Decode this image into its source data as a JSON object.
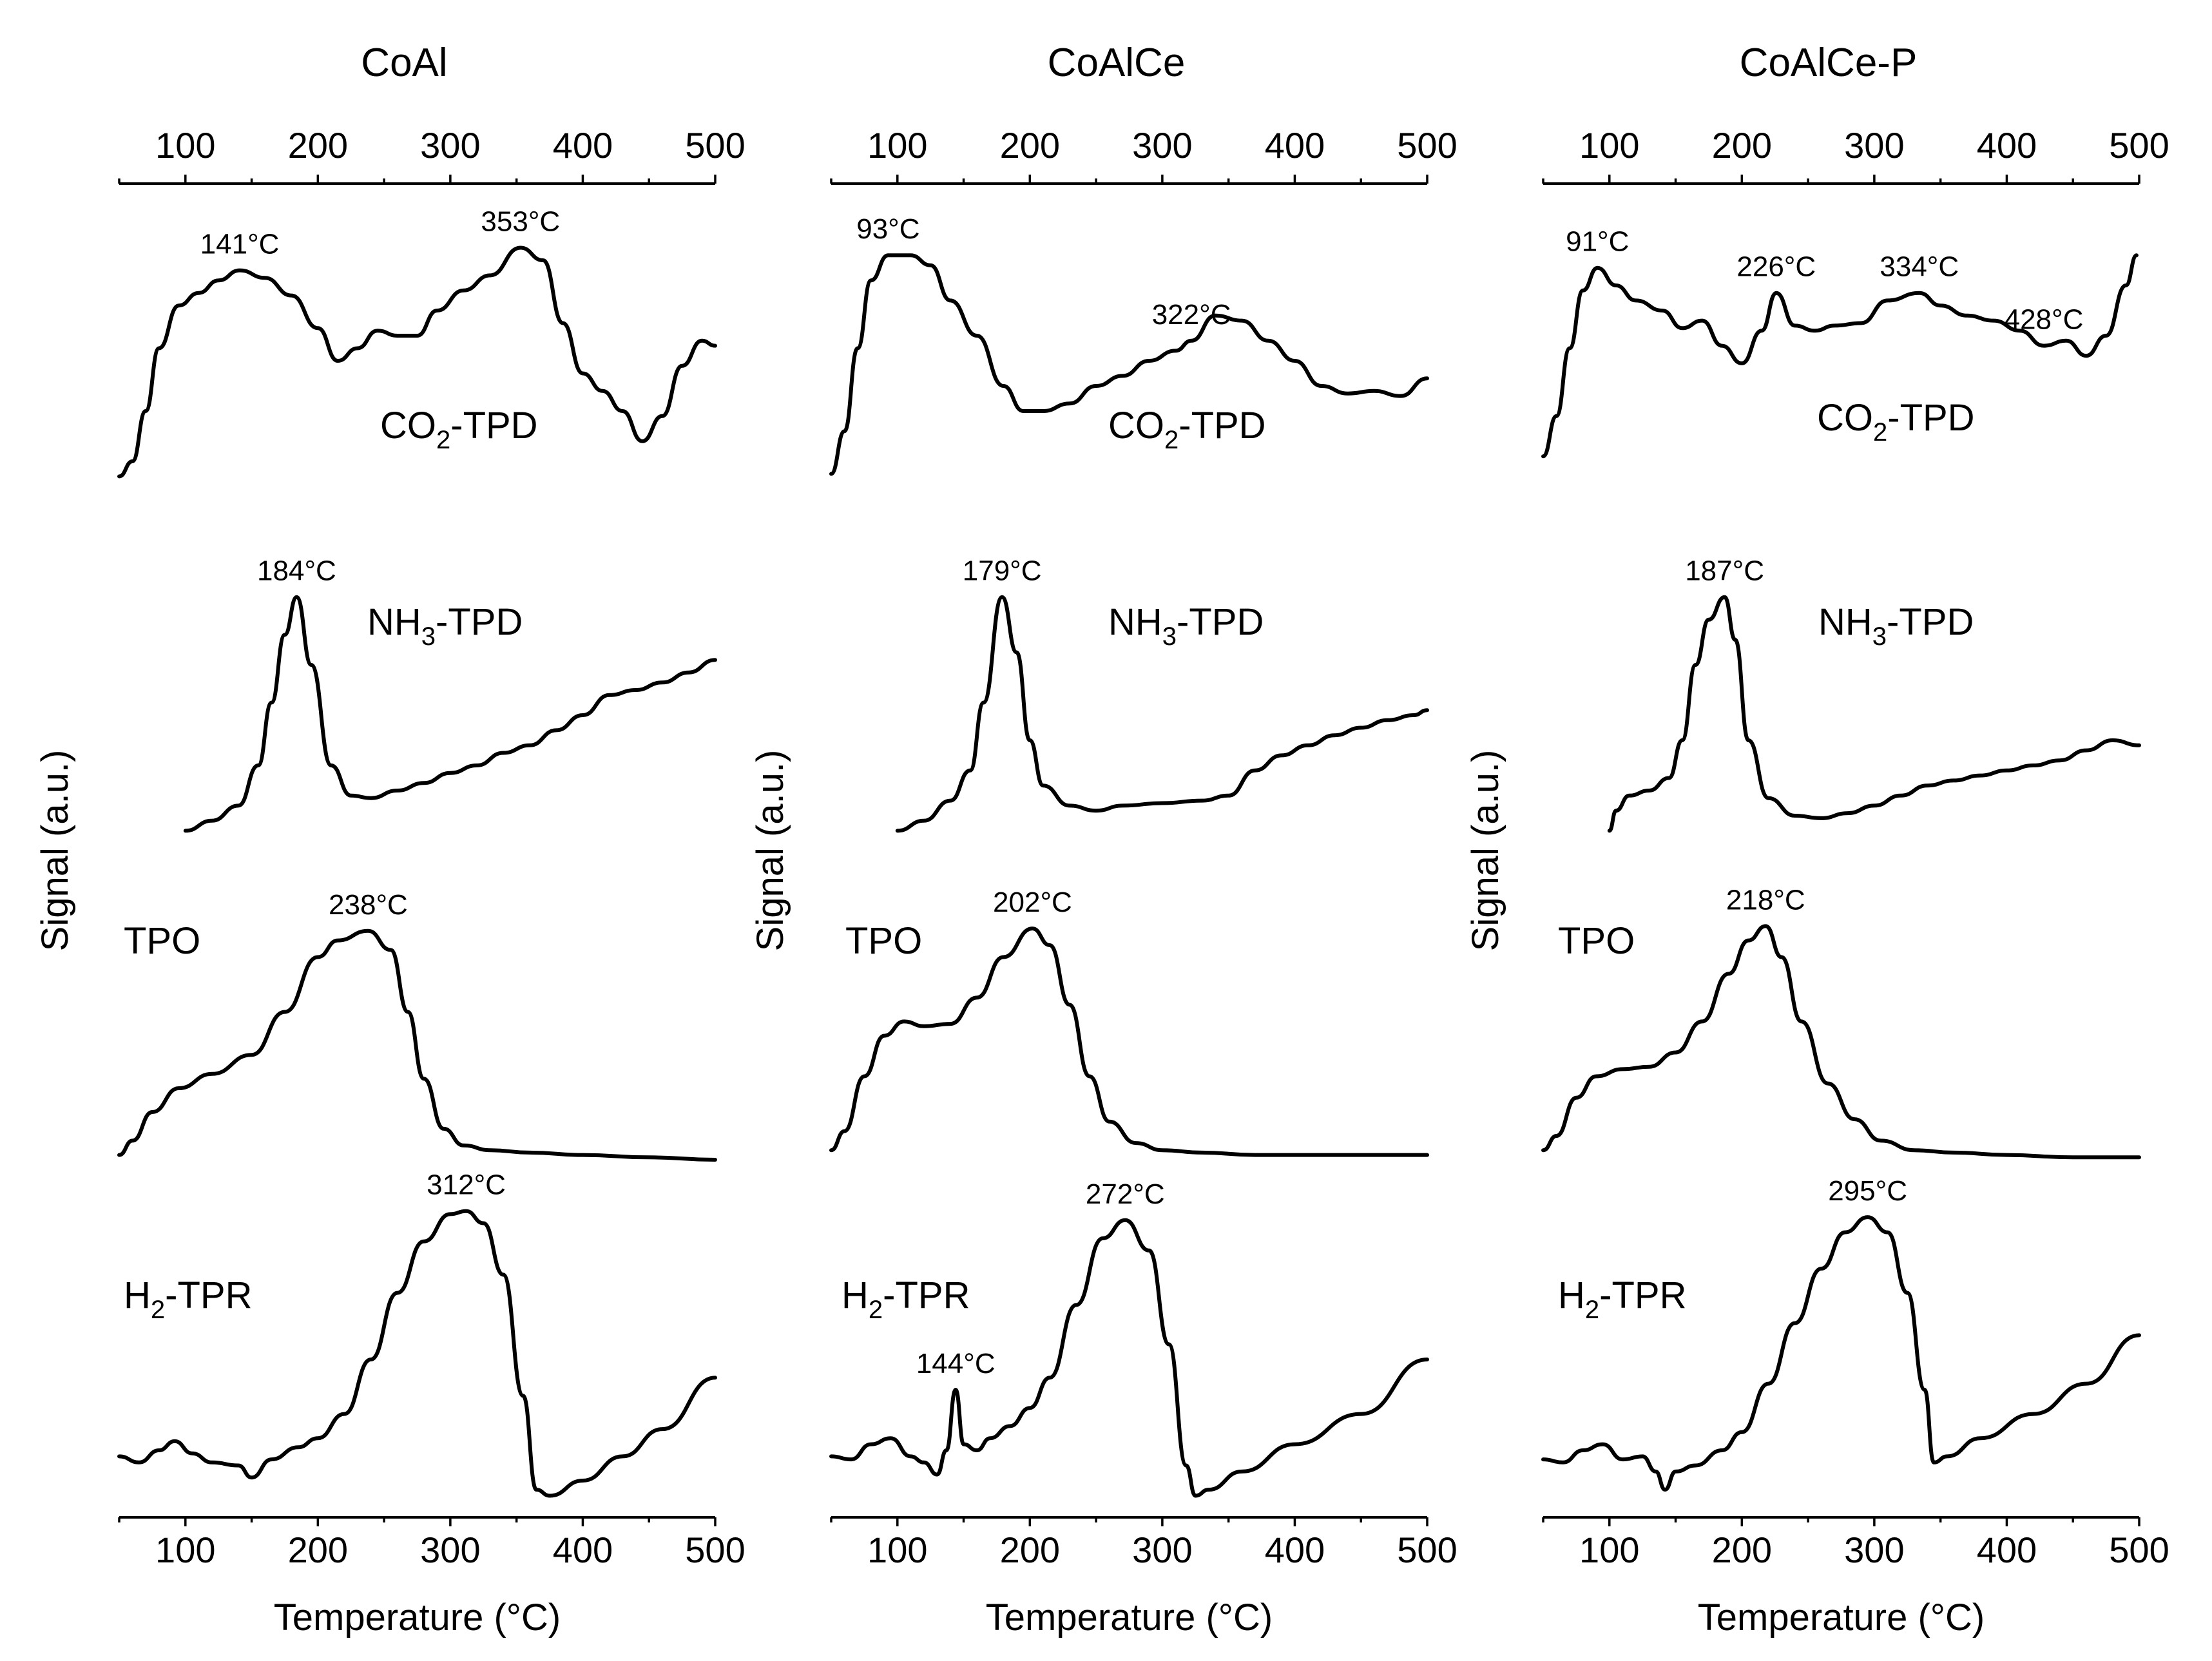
{
  "chart_data": [
    {
      "type": "line",
      "title": "CoAl",
      "xlabel": "Temperature (°C)",
      "ylabel": "Signal (a.u.)",
      "xlim": [
        50,
        500
      ],
      "xticks": [
        100,
        200,
        300,
        400,
        500
      ],
      "series": [
        {
          "name": "CO2-TPD",
          "label_main": "CO",
          "label_sub": "2",
          "label_tail": "-TPD",
          "x": [
            50,
            60,
            70,
            80,
            95,
            110,
            125,
            141,
            160,
            180,
            200,
            215,
            230,
            245,
            260,
            275,
            290,
            310,
            330,
            353,
            370,
            385,
            400,
            415,
            430,
            445,
            460,
            475,
            490,
            500
          ],
          "y": [
            0.04,
            0.1,
            0.3,
            0.55,
            0.72,
            0.77,
            0.82,
            0.86,
            0.83,
            0.76,
            0.63,
            0.5,
            0.55,
            0.62,
            0.6,
            0.6,
            0.7,
            0.78,
            0.84,
            0.95,
            0.9,
            0.65,
            0.45,
            0.38,
            0.3,
            0.18,
            0.28,
            0.48,
            0.58,
            0.56
          ],
          "peaks": [
            {
              "x": 141,
              "y": 0.86,
              "label": "141°C"
            },
            {
              "x": 353,
              "y": 0.95,
              "label": "353°C"
            }
          ]
        },
        {
          "name": "NH3-TPD",
          "label_main": "NH",
          "label_sub": "3",
          "label_tail": "-TPD",
          "x": [
            100,
            120,
            140,
            155,
            165,
            175,
            184,
            195,
            210,
            225,
            240,
            260,
            280,
            300,
            320,
            340,
            360,
            380,
            400,
            420,
            440,
            460,
            480,
            500
          ],
          "y": [
            0.04,
            0.08,
            0.14,
            0.3,
            0.55,
            0.82,
            0.97,
            0.7,
            0.3,
            0.18,
            0.17,
            0.2,
            0.23,
            0.27,
            0.3,
            0.35,
            0.38,
            0.44,
            0.5,
            0.58,
            0.6,
            0.63,
            0.67,
            0.72
          ],
          "peaks": [
            {
              "x": 184,
              "y": 0.97,
              "label": "184°C"
            }
          ]
        },
        {
          "name": "TPO",
          "label_main": "TPO",
          "label_sub": "",
          "label_tail": "",
          "x": [
            50,
            60,
            75,
            95,
            120,
            150,
            175,
            200,
            215,
            238,
            255,
            268,
            280,
            295,
            310,
            330,
            360,
            400,
            450,
            500
          ],
          "y": [
            0.02,
            0.08,
            0.2,
            0.3,
            0.36,
            0.44,
            0.62,
            0.85,
            0.92,
            0.96,
            0.88,
            0.62,
            0.34,
            0.13,
            0.06,
            0.04,
            0.03,
            0.02,
            0.01,
            0.0
          ],
          "peaks": [
            {
              "x": 238,
              "y": 0.96,
              "label": "238°C"
            }
          ]
        },
        {
          "name": "H2-TPR",
          "label_main": "H",
          "label_sub": "2",
          "label_tail": "-TPR",
          "x": [
            50,
            65,
            80,
            92,
            105,
            120,
            140,
            150,
            165,
            185,
            200,
            220,
            240,
            260,
            280,
            300,
            312,
            325,
            340,
            355,
            365,
            375,
            400,
            430,
            460,
            500
          ],
          "y": [
            0.18,
            0.16,
            0.2,
            0.23,
            0.19,
            0.16,
            0.15,
            0.11,
            0.17,
            0.21,
            0.24,
            0.32,
            0.5,
            0.72,
            0.89,
            0.98,
            0.99,
            0.95,
            0.78,
            0.38,
            0.07,
            0.05,
            0.1,
            0.18,
            0.27,
            0.44
          ],
          "peaks": [
            {
              "x": 312,
              "y": 0.99,
              "label": "312°C"
            }
          ]
        }
      ]
    },
    {
      "type": "line",
      "title": "CoAlCe",
      "xlabel": "Temperature (°C)",
      "ylabel": "Signal (a.u.)",
      "xlim": [
        50,
        500
      ],
      "xticks": [
        100,
        200,
        300,
        400,
        500
      ],
      "series": [
        {
          "name": "CO2-TPD",
          "label_main": "CO",
          "label_sub": "2",
          "label_tail": "-TPD",
          "x": [
            50,
            60,
            70,
            80,
            93,
            110,
            125,
            140,
            160,
            180,
            195,
            210,
            230,
            250,
            270,
            290,
            310,
            322,
            340,
            360,
            380,
            400,
            420,
            440,
            460,
            480,
            500
          ],
          "y": [
            0.05,
            0.22,
            0.55,
            0.82,
            0.92,
            0.92,
            0.88,
            0.74,
            0.6,
            0.4,
            0.3,
            0.3,
            0.33,
            0.4,
            0.44,
            0.5,
            0.54,
            0.58,
            0.68,
            0.66,
            0.58,
            0.5,
            0.4,
            0.37,
            0.38,
            0.36,
            0.43
          ],
          "peaks": [
            {
              "x": 93,
              "y": 0.92,
              "label": "93°C"
            },
            {
              "x": 322,
              "y": 0.58,
              "label": "322°C"
            }
          ]
        },
        {
          "name": "NH3-TPD",
          "label_main": "NH",
          "label_sub": "3",
          "label_tail": "-TPD",
          "x": [
            100,
            120,
            140,
            155,
            165,
            179,
            190,
            200,
            210,
            230,
            250,
            270,
            300,
            330,
            350,
            370,
            390,
            410,
            430,
            450,
            470,
            490,
            500
          ],
          "y": [
            0.04,
            0.08,
            0.16,
            0.28,
            0.55,
            0.97,
            0.75,
            0.4,
            0.22,
            0.14,
            0.12,
            0.14,
            0.15,
            0.16,
            0.18,
            0.28,
            0.34,
            0.38,
            0.42,
            0.45,
            0.48,
            0.5,
            0.52
          ],
          "peaks": [
            {
              "x": 179,
              "y": 0.97,
              "label": "179°C"
            }
          ]
        },
        {
          "name": "TPO",
          "label_main": "TPO",
          "label_sub": "",
          "label_tail": "",
          "x": [
            50,
            60,
            75,
            90,
            105,
            120,
            140,
            160,
            180,
            202,
            215,
            230,
            245,
            260,
            280,
            300,
            330,
            370,
            420,
            460,
            500
          ],
          "y": [
            0.04,
            0.12,
            0.35,
            0.52,
            0.58,
            0.56,
            0.57,
            0.68,
            0.85,
            0.97,
            0.9,
            0.65,
            0.35,
            0.16,
            0.07,
            0.04,
            0.03,
            0.02,
            0.02,
            0.02,
            0.02
          ],
          "peaks": [
            {
              "x": 202,
              "y": 0.97,
              "label": "202°C"
            }
          ]
        },
        {
          "name": "H2-TPR",
          "label_main": "H",
          "label_sub": "2",
          "label_tail": "-TPR",
          "x": [
            50,
            65,
            80,
            95,
            110,
            120,
            130,
            137,
            144,
            150,
            160,
            170,
            185,
            200,
            215,
            235,
            255,
            272,
            290,
            305,
            318,
            325,
            335,
            360,
            400,
            450,
            500
          ],
          "y": [
            0.18,
            0.17,
            0.22,
            0.24,
            0.18,
            0.16,
            0.12,
            0.2,
            0.4,
            0.22,
            0.2,
            0.24,
            0.28,
            0.34,
            0.44,
            0.68,
            0.9,
            0.96,
            0.86,
            0.55,
            0.15,
            0.05,
            0.07,
            0.13,
            0.22,
            0.32,
            0.5
          ],
          "peaks": [
            {
              "x": 144,
              "y": 0.4,
              "label": "144°C"
            },
            {
              "x": 272,
              "y": 0.96,
              "label": "272°C"
            }
          ]
        }
      ]
    },
    {
      "type": "line",
      "title": "CoAlCe-P",
      "xlabel": "Temperature (°C)",
      "ylabel": "Signal (a.u.)",
      "xlim": [
        50,
        500
      ],
      "xticks": [
        100,
        200,
        300,
        400,
        500
      ],
      "series": [
        {
          "name": "CO2-TPD",
          "label_main": "CO",
          "label_sub": "2",
          "label_tail": "-TPD",
          "x": [
            50,
            60,
            70,
            80,
            91,
            105,
            120,
            140,
            155,
            170,
            185,
            200,
            215,
            226,
            240,
            255,
            270,
            290,
            310,
            334,
            350,
            370,
            390,
            410,
            428,
            445,
            460,
            475,
            490,
            498
          ],
          "y": [
            0.12,
            0.28,
            0.55,
            0.78,
            0.87,
            0.8,
            0.74,
            0.7,
            0.63,
            0.66,
            0.56,
            0.49,
            0.62,
            0.77,
            0.64,
            0.62,
            0.64,
            0.65,
            0.74,
            0.77,
            0.72,
            0.68,
            0.66,
            0.62,
            0.56,
            0.58,
            0.52,
            0.6,
            0.8,
            0.92
          ],
          "peaks": [
            {
              "x": 91,
              "y": 0.87,
              "label": "91°C"
            },
            {
              "x": 226,
              "y": 0.77,
              "label": "226°C"
            },
            {
              "x": 334,
              "y": 0.77,
              "label": "334°C"
            },
            {
              "x": 428,
              "y": 0.56,
              "label": "428°C"
            }
          ]
        },
        {
          "name": "NH3-TPD",
          "label_main": "NH",
          "label_sub": "3",
          "label_tail": "-TPD",
          "x": [
            100,
            105,
            115,
            130,
            145,
            155,
            165,
            175,
            187,
            195,
            205,
            220,
            240,
            260,
            280,
            300,
            320,
            340,
            360,
            380,
            400,
            420,
            440,
            460,
            480,
            500
          ],
          "y": [
            0.04,
            0.12,
            0.18,
            0.2,
            0.25,
            0.4,
            0.7,
            0.88,
            0.97,
            0.8,
            0.4,
            0.17,
            0.1,
            0.09,
            0.11,
            0.14,
            0.18,
            0.22,
            0.24,
            0.26,
            0.28,
            0.3,
            0.32,
            0.36,
            0.4,
            0.38
          ],
          "peaks": [
            {
              "x": 187,
              "y": 0.97,
              "label": "187°C"
            }
          ]
        },
        {
          "name": "TPO",
          "label_main": "TPO",
          "label_sub": "",
          "label_tail": "",
          "x": [
            50,
            60,
            75,
            90,
            110,
            130,
            150,
            170,
            190,
            205,
            218,
            230,
            245,
            265,
            285,
            305,
            330,
            360,
            400,
            450,
            500
          ],
          "y": [
            0.04,
            0.1,
            0.26,
            0.35,
            0.38,
            0.39,
            0.45,
            0.58,
            0.78,
            0.92,
            0.98,
            0.85,
            0.58,
            0.32,
            0.17,
            0.08,
            0.04,
            0.03,
            0.02,
            0.01,
            0.01
          ],
          "peaks": [
            {
              "x": 218,
              "y": 0.98,
              "label": "218°C"
            }
          ]
        },
        {
          "name": "H2-TPR",
          "label_main": "H",
          "label_sub": "2",
          "label_tail": "-TPR",
          "x": [
            50,
            65,
            80,
            95,
            110,
            125,
            135,
            142,
            150,
            165,
            185,
            200,
            220,
            240,
            260,
            278,
            295,
            310,
            325,
            338,
            345,
            355,
            380,
            420,
            460,
            500
          ],
          "y": [
            0.17,
            0.16,
            0.2,
            0.22,
            0.17,
            0.18,
            0.13,
            0.07,
            0.13,
            0.15,
            0.2,
            0.26,
            0.42,
            0.62,
            0.8,
            0.92,
            0.97,
            0.92,
            0.72,
            0.4,
            0.16,
            0.18,
            0.24,
            0.32,
            0.42,
            0.58
          ],
          "peaks": [
            {
              "x": 295,
              "y": 0.97,
              "label": "295°C"
            }
          ]
        }
      ]
    }
  ]
}
